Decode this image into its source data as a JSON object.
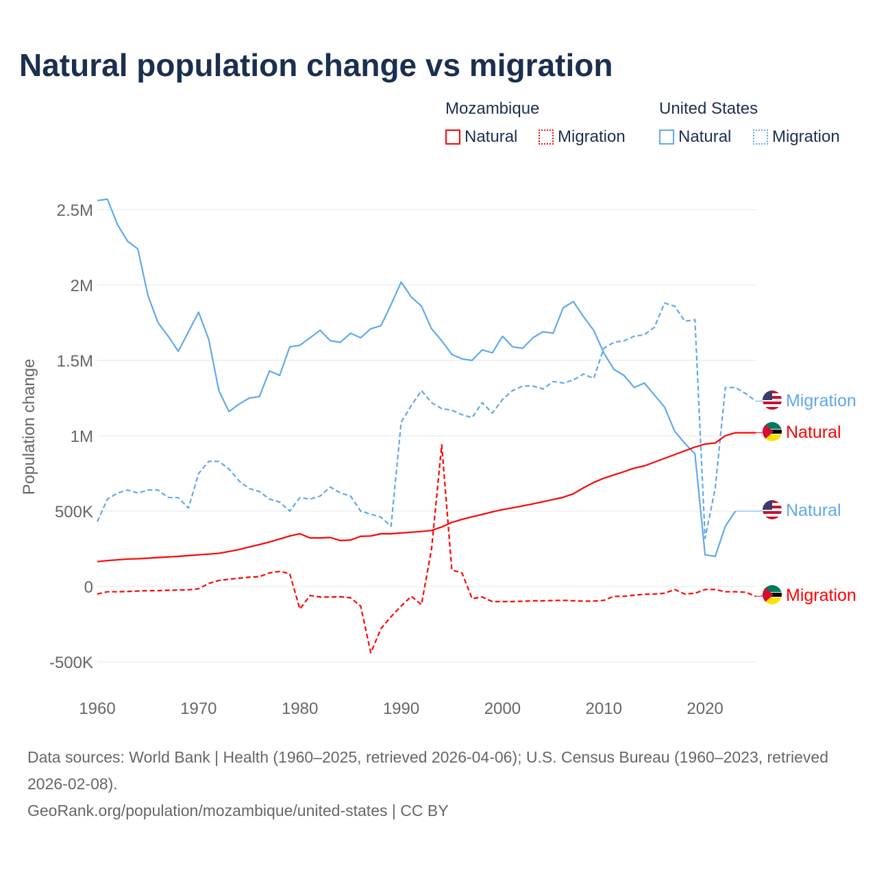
{
  "title": "Natural population change vs migration",
  "legend": {
    "groups": [
      {
        "name": "Mozambique",
        "items": [
          "Natural",
          "Migration"
        ]
      },
      {
        "name": "United States",
        "items": [
          "Natural",
          "Migration"
        ]
      }
    ]
  },
  "colors": {
    "mozambique": "#ff0000",
    "united_states": "#5fa8ec",
    "title": "#1b2f4f",
    "grid": "#e6e6e6"
  },
  "footer": {
    "line1": "Data sources: World Bank | Health (1960–2025, retrieved 2026-04-06); U.S. Census Bureau (1960–2023, retrieved 2026-02-08).",
    "line2": "GeoRank.org/population/mozambique/united-states | CC BY"
  },
  "chart_data": {
    "type": "line",
    "title": "Natural population change vs migration",
    "ylabel": "Population change",
    "xlabel": "",
    "xlim": [
      1960,
      2025
    ],
    "ylim": [
      -500000,
      2500000
    ],
    "x_ticks": [
      {
        "v": 1960,
        "label": "1960"
      },
      {
        "v": 1970,
        "label": "1970"
      },
      {
        "v": 1980,
        "label": "1980"
      },
      {
        "v": 1990,
        "label": "1990"
      },
      {
        "v": 2000,
        "label": "2000"
      },
      {
        "v": 2010,
        "label": "2010"
      },
      {
        "v": 2020,
        "label": "2020"
      }
    ],
    "y_ticks": [
      {
        "v": -500000,
        "label": "-500K"
      },
      {
        "v": 0,
        "label": "0"
      },
      {
        "v": 500000,
        "label": "500K"
      },
      {
        "v": 1000000,
        "label": "1M"
      },
      {
        "v": 1500000,
        "label": "1.5M"
      },
      {
        "v": 2000000,
        "label": "2M"
      },
      {
        "v": 2500000,
        "label": "2.5M"
      }
    ],
    "grid": true,
    "series": [
      {
        "name": "United States Natural",
        "label": "Natural",
        "country": "united_states",
        "dashed": false,
        "start": 1960,
        "values_millions": [
          2.56,
          2.57,
          2.4,
          2.29,
          2.24,
          1.93,
          1.75,
          1.66,
          1.56,
          1.69,
          1.82,
          1.64,
          1.3,
          1.16,
          1.21,
          1.25,
          1.26,
          1.43,
          1.4,
          1.59,
          1.6,
          1.65,
          1.7,
          1.63,
          1.62,
          1.68,
          1.65,
          1.71,
          1.73,
          1.87,
          2.02,
          1.92,
          1.86,
          1.71,
          1.63,
          1.54,
          1.51,
          1.5,
          1.57,
          1.55,
          1.66,
          1.59,
          1.58,
          1.65,
          1.69,
          1.68,
          1.85,
          1.89,
          1.79,
          1.7,
          1.55,
          1.44,
          1.4,
          1.32,
          1.35,
          1.27,
          1.19,
          1.03,
          0.95,
          0.88,
          0.21,
          0.2,
          0.4,
          0.5
        ]
      },
      {
        "name": "United States Migration",
        "label": "Migration",
        "country": "united_states",
        "dashed": true,
        "start": 1960,
        "values_millions": [
          0.43,
          0.58,
          0.62,
          0.64,
          0.62,
          0.64,
          0.64,
          0.59,
          0.59,
          0.52,
          0.75,
          0.83,
          0.83,
          0.78,
          0.7,
          0.65,
          0.63,
          0.58,
          0.56,
          0.5,
          0.59,
          0.58,
          0.6,
          0.66,
          0.62,
          0.6,
          0.5,
          0.48,
          0.46,
          0.4,
          1.09,
          1.2,
          1.3,
          1.22,
          1.18,
          1.17,
          1.14,
          1.12,
          1.22,
          1.15,
          1.24,
          1.3,
          1.33,
          1.33,
          1.31,
          1.36,
          1.35,
          1.37,
          1.41,
          1.38,
          1.58,
          1.62,
          1.63,
          1.66,
          1.67,
          1.72,
          1.88,
          1.86,
          1.76,
          1.77,
          0.32,
          0.65,
          1.32,
          1.32,
          1.28,
          1.23
        ]
      },
      {
        "name": "Mozambique Natural",
        "label": "Natural",
        "country": "mozambique",
        "dashed": false,
        "start": 1960,
        "values_millions": [
          0.165,
          0.172,
          0.177,
          0.182,
          0.184,
          0.188,
          0.192,
          0.196,
          0.2,
          0.205,
          0.21,
          0.215,
          0.22,
          0.232,
          0.245,
          0.262,
          0.278,
          0.295,
          0.315,
          0.335,
          0.35,
          0.322,
          0.322,
          0.325,
          0.305,
          0.308,
          0.333,
          0.335,
          0.35,
          0.35,
          0.355,
          0.36,
          0.365,
          0.372,
          0.395,
          0.425,
          0.445,
          0.462,
          0.478,
          0.495,
          0.51,
          0.522,
          0.535,
          0.548,
          0.562,
          0.577,
          0.592,
          0.615,
          0.655,
          0.69,
          0.718,
          0.74,
          0.762,
          0.785,
          0.8,
          0.825,
          0.85,
          0.875,
          0.9,
          0.925,
          0.945,
          0.952,
          1.0,
          1.02,
          1.02,
          1.02
        ]
      },
      {
        "name": "Mozambique Migration",
        "label": "Migration",
        "country": "mozambique",
        "dashed": true,
        "start": 1960,
        "values_millions": [
          -0.05,
          -0.035,
          -0.035,
          -0.033,
          -0.03,
          -0.028,
          -0.028,
          -0.025,
          -0.024,
          -0.022,
          -0.015,
          0.02,
          0.04,
          0.048,
          0.055,
          0.062,
          0.065,
          0.09,
          0.1,
          0.085,
          -0.15,
          -0.06,
          -0.07,
          -0.07,
          -0.068,
          -0.075,
          -0.13,
          -0.44,
          -0.28,
          -0.2,
          -0.13,
          -0.065,
          -0.12,
          0.25,
          0.94,
          0.11,
          0.09,
          -0.08,
          -0.07,
          -0.1,
          -0.1,
          -0.1,
          -0.098,
          -0.095,
          -0.095,
          -0.093,
          -0.092,
          -0.095,
          -0.097,
          -0.097,
          -0.092,
          -0.065,
          -0.065,
          -0.058,
          -0.052,
          -0.05,
          -0.045,
          -0.02,
          -0.05,
          -0.045,
          -0.02,
          -0.02,
          -0.035,
          -0.035,
          -0.038,
          -0.065
        ]
      }
    ]
  }
}
